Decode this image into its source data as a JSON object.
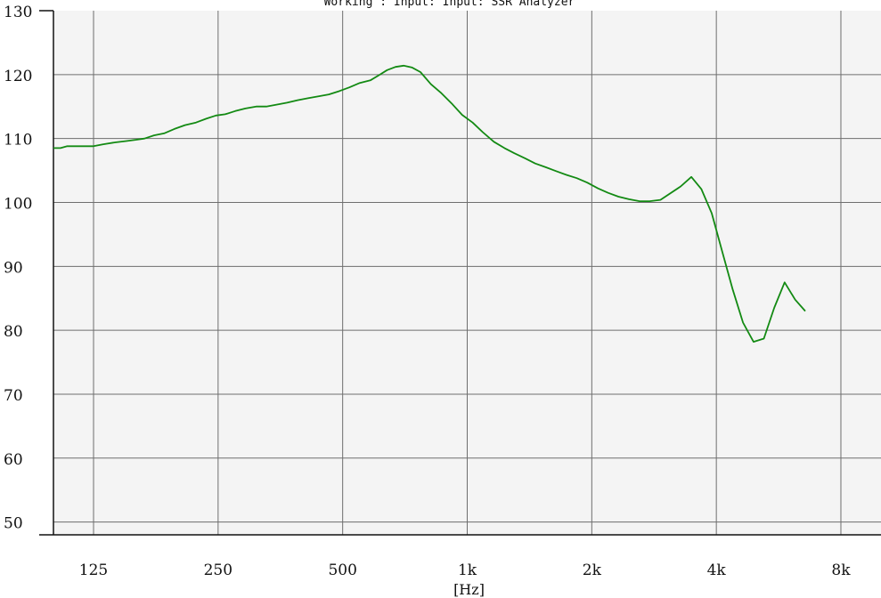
{
  "chart_data": {
    "type": "line",
    "title": "Working : Input: Input: SSR Analyzer",
    "xlabel": "[Hz]",
    "ylabel": "",
    "x_scale": "log",
    "xlim": [
      100,
      10000
    ],
    "ylim": [
      48,
      130
    ],
    "grid": true,
    "legend": "none",
    "x_ticks": [
      {
        "value": 125,
        "label": "125"
      },
      {
        "value": 250,
        "label": "250"
      },
      {
        "value": 500,
        "label": "500"
      },
      {
        "value": 1000,
        "label": "1k"
      },
      {
        "value": 2000,
        "label": "2k"
      },
      {
        "value": 4000,
        "label": "4k"
      },
      {
        "value": 8000,
        "label": "8k"
      }
    ],
    "y_ticks": [
      {
        "value": 50,
        "label": "50"
      },
      {
        "value": 60,
        "label": "60"
      },
      {
        "value": 70,
        "label": "70"
      },
      {
        "value": 80,
        "label": "80"
      },
      {
        "value": 90,
        "label": "90"
      },
      {
        "value": 100,
        "label": "100"
      },
      {
        "value": 110,
        "label": "110"
      },
      {
        "value": 120,
        "label": "120"
      },
      {
        "value": 130,
        "label": "130"
      }
    ],
    "series": [
      {
        "color": "#138a13",
        "points": [
          [
            100,
            108.5
          ],
          [
            104,
            108.5
          ],
          [
            108,
            108.8
          ],
          [
            116,
            108.8
          ],
          [
            125,
            108.8
          ],
          [
            132,
            109.1
          ],
          [
            141,
            109.4
          ],
          [
            150,
            109.6
          ],
          [
            158,
            109.8
          ],
          [
            166,
            110.0
          ],
          [
            175,
            110.5
          ],
          [
            185,
            110.8
          ],
          [
            196,
            111.5
          ],
          [
            208,
            112.1
          ],
          [
            221,
            112.5
          ],
          [
            234,
            113.1
          ],
          [
            247,
            113.6
          ],
          [
            260,
            113.8
          ],
          [
            275,
            114.3
          ],
          [
            291,
            114.7
          ],
          [
            309,
            115.0
          ],
          [
            327,
            115.0
          ],
          [
            346,
            115.3
          ],
          [
            367,
            115.6
          ],
          [
            389,
            116.0
          ],
          [
            412,
            116.3
          ],
          [
            437,
            116.6
          ],
          [
            463,
            116.9
          ],
          [
            490,
            117.4
          ],
          [
            519,
            118.0
          ],
          [
            550,
            118.7
          ],
          [
            583,
            119.1
          ],
          [
            612,
            119.9
          ],
          [
            640,
            120.7
          ],
          [
            671,
            121.2
          ],
          [
            702,
            121.4
          ],
          [
            736,
            121.1
          ],
          [
            771,
            120.4
          ],
          [
            817,
            118.5
          ],
          [
            866,
            117.1
          ],
          [
            917,
            115.5
          ],
          [
            972,
            113.7
          ],
          [
            1030,
            112.5
          ],
          [
            1090,
            111.0
          ],
          [
            1160,
            109.5
          ],
          [
            1230,
            108.5
          ],
          [
            1300,
            107.7
          ],
          [
            1380,
            106.9
          ],
          [
            1460,
            106.1
          ],
          [
            1550,
            105.5
          ],
          [
            1640,
            104.9
          ],
          [
            1740,
            104.3
          ],
          [
            1840,
            103.8
          ],
          [
            1950,
            103.1
          ],
          [
            2070,
            102.2
          ],
          [
            2190,
            101.5
          ],
          [
            2320,
            100.9
          ],
          [
            2460,
            100.5
          ],
          [
            2610,
            100.2
          ],
          [
            2760,
            100.2
          ],
          [
            2930,
            100.4
          ],
          [
            3280,
            102.5
          ],
          [
            3480,
            104.0
          ],
          [
            3680,
            102.1
          ],
          [
            3900,
            98.3
          ],
          [
            4130,
            92.4
          ],
          [
            4380,
            86.4
          ],
          [
            4640,
            81.2
          ],
          [
            4920,
            78.2
          ],
          [
            5210,
            78.7
          ],
          [
            5520,
            83.5
          ],
          [
            5850,
            87.5
          ],
          [
            6200,
            84.8
          ],
          [
            6560,
            83.0
          ]
        ]
      }
    ]
  }
}
